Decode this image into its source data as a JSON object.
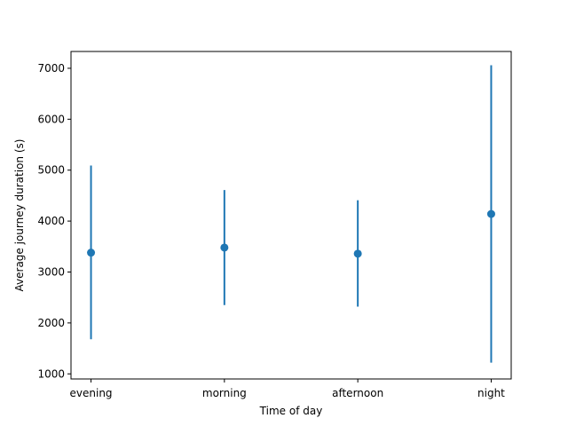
{
  "chart_data": {
    "type": "errorbar",
    "title": "",
    "xlabel": "Time of day",
    "ylabel": "Average journey duration (s)",
    "categories": [
      "evening",
      "morning",
      "afternoon",
      "night"
    ],
    "series": [
      {
        "values": [
          3380,
          3480,
          3360,
          4140
        ],
        "error_low": [
          1680,
          2350,
          2320,
          1220
        ],
        "error_high": [
          5090,
          4610,
          4410,
          7060
        ]
      }
    ],
    "ylim": [
      900,
      7330
    ],
    "yticks": [
      1000,
      2000,
      3000,
      4000,
      5000,
      6000,
      7000
    ],
    "grid": false,
    "legend": "none",
    "colors": {
      "series": "#1f77b4",
      "axes": "#000000"
    }
  }
}
